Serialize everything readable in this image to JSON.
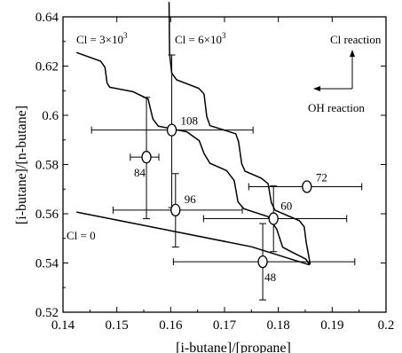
{
  "chart_data": {
    "type": "scatter",
    "title": "",
    "xlabel": "[i-butane]/[propane]",
    "ylabel": "[i-butane]/[n-butane]",
    "xlim": [
      0.14,
      0.2
    ],
    "ylim": [
      0.52,
      0.64
    ],
    "x_ticks": [
      0.14,
      0.15,
      0.16,
      0.17,
      0.18,
      0.19,
      0.2
    ],
    "y_ticks": [
      0.52,
      0.54,
      0.56,
      0.58,
      0.6,
      0.62,
      0.64
    ],
    "x_tick_labels": [
      "0.14",
      "0.15",
      "0.16",
      "0.17",
      "0.18",
      "0.19",
      "0.2"
    ],
    "y_tick_labels": [
      "0.52",
      "0.54",
      "0.56",
      "0.58",
      "0.6",
      "0.62",
      "0.64"
    ],
    "grid": false,
    "points": [
      {
        "label": "108",
        "x": 0.1602,
        "y": 0.594,
        "xerr": [
          0.1453,
          0.1753
        ],
        "yerr": [
          0.5625,
          0.6245
        ]
      },
      {
        "label": "84",
        "x": 0.1555,
        "y": 0.583,
        "xerr": [
          0.1525,
          0.1578
        ],
        "yerr": [
          0.558,
          0.6073
        ]
      },
      {
        "label": "96",
        "x": 0.1609,
        "y": 0.5615,
        "xerr": [
          0.1493,
          0.1733
        ],
        "yerr": [
          0.5465,
          0.5763
        ]
      },
      {
        "label": "72",
        "x": 0.1853,
        "y": 0.571,
        "xerr": [
          0.1745,
          0.1955
        ],
        "yerr": [
          0.571,
          0.571
        ]
      },
      {
        "label": "60",
        "x": 0.1791,
        "y": 0.558,
        "xerr": [
          0.1661,
          0.1927
        ],
        "yerr": [
          0.5446,
          0.5713
        ]
      },
      {
        "label": "48",
        "x": 0.1771,
        "y": 0.5405,
        "xerr": [
          0.1605,
          0.1942
        ],
        "yerr": [
          0.525,
          0.556
        ]
      }
    ],
    "curves": [
      {
        "name": "Cl = 0",
        "points": [
          [
            0.1425,
            0.5607
          ],
          [
            0.16,
            0.5531
          ],
          [
            0.175,
            0.5466
          ],
          [
            0.1858,
            0.5392
          ]
        ]
      },
      {
        "name": "Cl = 3×10³",
        "points": [
          [
            0.1425,
            0.6255
          ],
          [
            0.147,
            0.622
          ],
          [
            0.1478,
            0.6195
          ],
          [
            0.1482,
            0.613
          ],
          [
            0.1487,
            0.6114
          ],
          [
            0.153,
            0.6096
          ],
          [
            0.1558,
            0.6066
          ],
          [
            0.1567,
            0.5985
          ],
          [
            0.1577,
            0.5956
          ],
          [
            0.163,
            0.5933
          ],
          [
            0.1653,
            0.5897
          ],
          [
            0.1662,
            0.5845
          ],
          [
            0.1673,
            0.5805
          ],
          [
            0.1704,
            0.5775
          ],
          [
            0.1718,
            0.5735
          ],
          [
            0.1725,
            0.5648
          ],
          [
            0.1736,
            0.562
          ],
          [
            0.1781,
            0.5588
          ],
          [
            0.1797,
            0.5538
          ],
          [
            0.1808,
            0.5464
          ],
          [
            0.1822,
            0.5448
          ],
          [
            0.1851,
            0.5416
          ],
          [
            0.1858,
            0.5393
          ]
        ]
      },
      {
        "name": "Cl = 6×10³",
        "points": [
          [
            0.1597,
            0.646
          ],
          [
            0.1598,
            0.625
          ],
          [
            0.1602,
            0.6172
          ],
          [
            0.1611,
            0.6144
          ],
          [
            0.1652,
            0.611
          ],
          [
            0.1662,
            0.6087
          ],
          [
            0.1667,
            0.5995
          ],
          [
            0.1673,
            0.5958
          ],
          [
            0.1721,
            0.5925
          ],
          [
            0.1726,
            0.5893
          ],
          [
            0.1732,
            0.5803
          ],
          [
            0.1738,
            0.5773
          ],
          [
            0.1768,
            0.5745
          ],
          [
            0.1781,
            0.5722
          ],
          [
            0.1787,
            0.5645
          ],
          [
            0.1794,
            0.5614
          ],
          [
            0.1839,
            0.5572
          ],
          [
            0.1848,
            0.5547
          ],
          [
            0.1852,
            0.548
          ],
          [
            0.1856,
            0.5435
          ],
          [
            0.1859,
            0.5394
          ]
        ]
      }
    ],
    "annotations": {
      "cl_zero": "Cl = 0",
      "cl_3e3_prefix": "Cl = 3",
      "cl_6e3_prefix": "Cl = 6",
      "times_ten": "×10",
      "exponent": "3",
      "cl_reaction": "Cl reaction",
      "oh_reaction": "OH reaction"
    }
  }
}
